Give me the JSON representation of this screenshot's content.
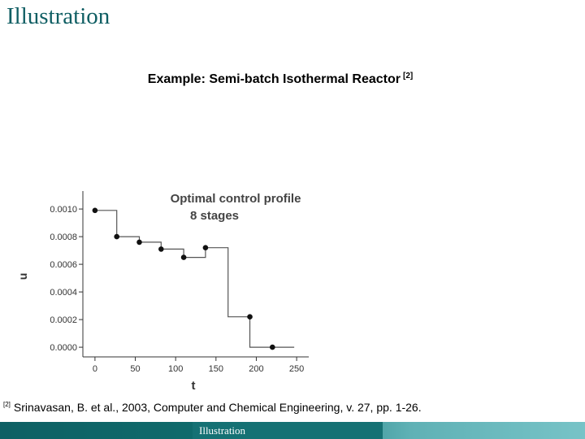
{
  "slide": {
    "title": "Illustration",
    "subtitle": "Example: Semi-batch Isothermal Reactor",
    "subtitle_ref": "[2]",
    "citation_ref": "[2]",
    "citation": "Srinavasan, B. et al., 2003, Computer and Chemical Engineering, v. 27, pp. 1-26.",
    "footer_label": "Illustration"
  },
  "colors": {
    "title": "#0f5e63",
    "footer_dark": "#0e6064",
    "footer_light": "#77c3c7"
  },
  "chart_data": {
    "type": "line",
    "step": true,
    "title": "Optimal control profile",
    "subtitle": "8 stages",
    "xlabel": "t",
    "ylabel": "u",
    "xlim": [
      -15,
      265
    ],
    "ylim": [
      -7e-05,
      0.00113
    ],
    "xticks": [
      "0",
      "50",
      "100",
      "150",
      "200",
      "250"
    ],
    "xtick_values": [
      0,
      50,
      100,
      150,
      200,
      250
    ],
    "yticks": [
      "0.0000",
      "0.0002",
      "0.0004",
      "0.0006",
      "0.0008",
      "0.0010"
    ],
    "ytick_values": [
      0,
      0.0002,
      0.0004,
      0.0006,
      0.0008,
      0.001
    ],
    "grid": false,
    "series": [
      {
        "x": [
          0,
          27,
          55,
          82,
          110,
          137,
          165,
          192,
          220,
          247
        ],
        "values": [
          0.00099,
          0.0008,
          0.00076,
          0.00071,
          0.00065,
          0.00072,
          0.00022,
          0.0,
          0.0,
          0.0
        ]
      }
    ],
    "markers": {
      "x": [
        0,
        27,
        55,
        82,
        110,
        137,
        192,
        220
      ],
      "values": [
        0.00099,
        0.0008,
        0.00076,
        0.00071,
        0.00065,
        0.00072,
        0.00022,
        0.0
      ]
    }
  }
}
